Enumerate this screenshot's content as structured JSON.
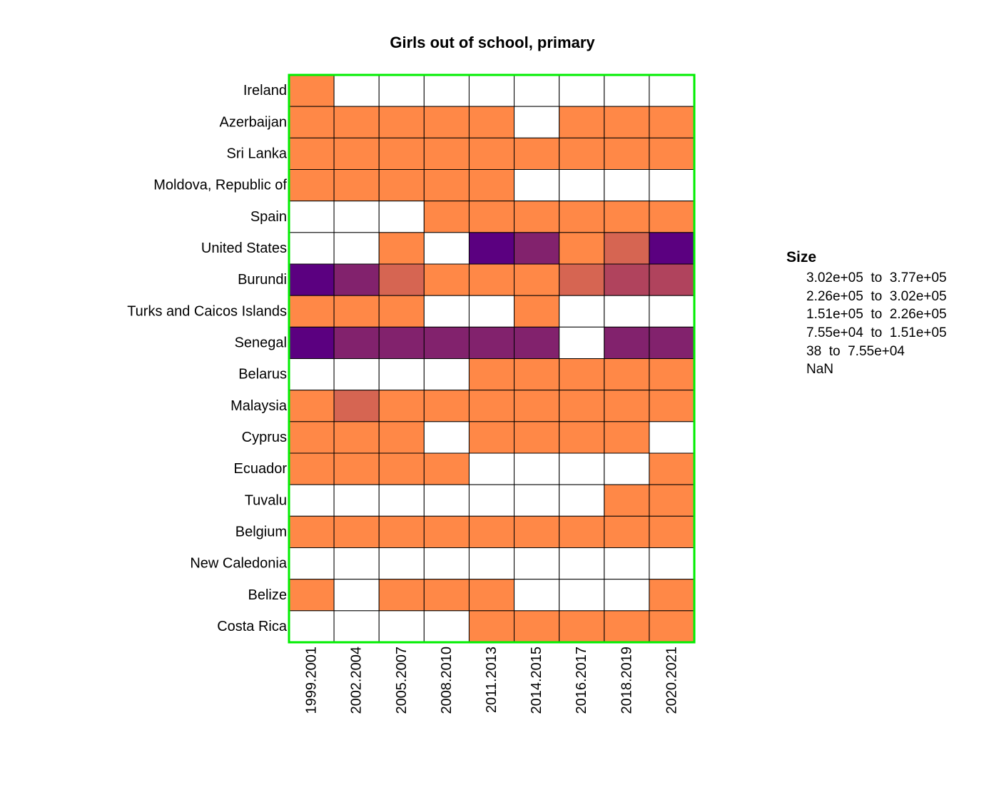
{
  "chart_data": {
    "type": "heatmap",
    "title": "Girls out of school, primary",
    "xlabel": "",
    "ylabel": "",
    "x": [
      "1999.2001",
      "2002.2004",
      "2005.2007",
      "2008.2010",
      "2011.2013",
      "2014.2015",
      "2016.2017",
      "2018.2019",
      "2020.2021"
    ],
    "y": [
      "Ireland",
      "Azerbaijan",
      "Sri Lanka",
      "Moldova, Republic of",
      "Spain",
      "United States",
      "Burundi",
      "Turks and Caicos Islands",
      "Senegal",
      "Belarus",
      "Malaysia",
      "Cyprus",
      "Ecuador",
      "Tuvalu",
      "Belgium",
      "New Caledonia",
      "Belize",
      "Costa Rica"
    ],
    "bins": [
      {
        "label": "3.02e+05  to  3.77e+05",
        "color": "#5B0080"
      },
      {
        "label": "2.26e+05  to  3.02e+05",
        "color": "#82226D"
      },
      {
        "label": "1.51e+05  to  2.26e+05",
        "color": "#B0435D"
      },
      {
        "label": "7.55e+04  to  1.51e+05",
        "color": "#D66552"
      },
      {
        "label": "38  to  7.55e+04",
        "color": "#FF8847"
      },
      {
        "label": "NaN",
        "color": "#FFFFFF"
      }
    ],
    "cell_bins": [
      [
        4,
        5,
        5,
        5,
        5,
        5,
        5,
        5,
        5
      ],
      [
        4,
        4,
        4,
        4,
        4,
        5,
        4,
        4,
        4
      ],
      [
        4,
        4,
        4,
        4,
        4,
        4,
        4,
        4,
        4
      ],
      [
        4,
        4,
        4,
        4,
        4,
        5,
        5,
        5,
        5
      ],
      [
        5,
        5,
        5,
        4,
        4,
        4,
        4,
        4,
        4
      ],
      [
        5,
        5,
        4,
        5,
        0,
        1,
        4,
        3,
        0
      ],
      [
        0,
        1,
        3,
        4,
        4,
        4,
        3,
        2,
        2
      ],
      [
        4,
        4,
        4,
        5,
        5,
        4,
        5,
        5,
        5
      ],
      [
        0,
        1,
        1,
        1,
        1,
        1,
        5,
        1,
        1
      ],
      [
        5,
        5,
        5,
        5,
        4,
        4,
        4,
        4,
        4
      ],
      [
        4,
        3,
        4,
        4,
        4,
        4,
        4,
        4,
        4
      ],
      [
        4,
        4,
        4,
        5,
        4,
        4,
        4,
        4,
        5
      ],
      [
        4,
        4,
        4,
        4,
        5,
        5,
        5,
        5,
        4
      ],
      [
        5,
        5,
        5,
        5,
        5,
        5,
        5,
        4,
        4
      ],
      [
        4,
        4,
        4,
        4,
        4,
        4,
        4,
        4,
        4
      ],
      [
        5,
        5,
        5,
        5,
        5,
        5,
        5,
        5,
        5
      ],
      [
        4,
        5,
        4,
        4,
        4,
        5,
        5,
        5,
        4
      ],
      [
        5,
        5,
        5,
        5,
        4,
        4,
        4,
        4,
        4
      ]
    ],
    "legend": {
      "title": "Size",
      "position": "right"
    },
    "frame_color": "#00EE00",
    "grid": true
  }
}
